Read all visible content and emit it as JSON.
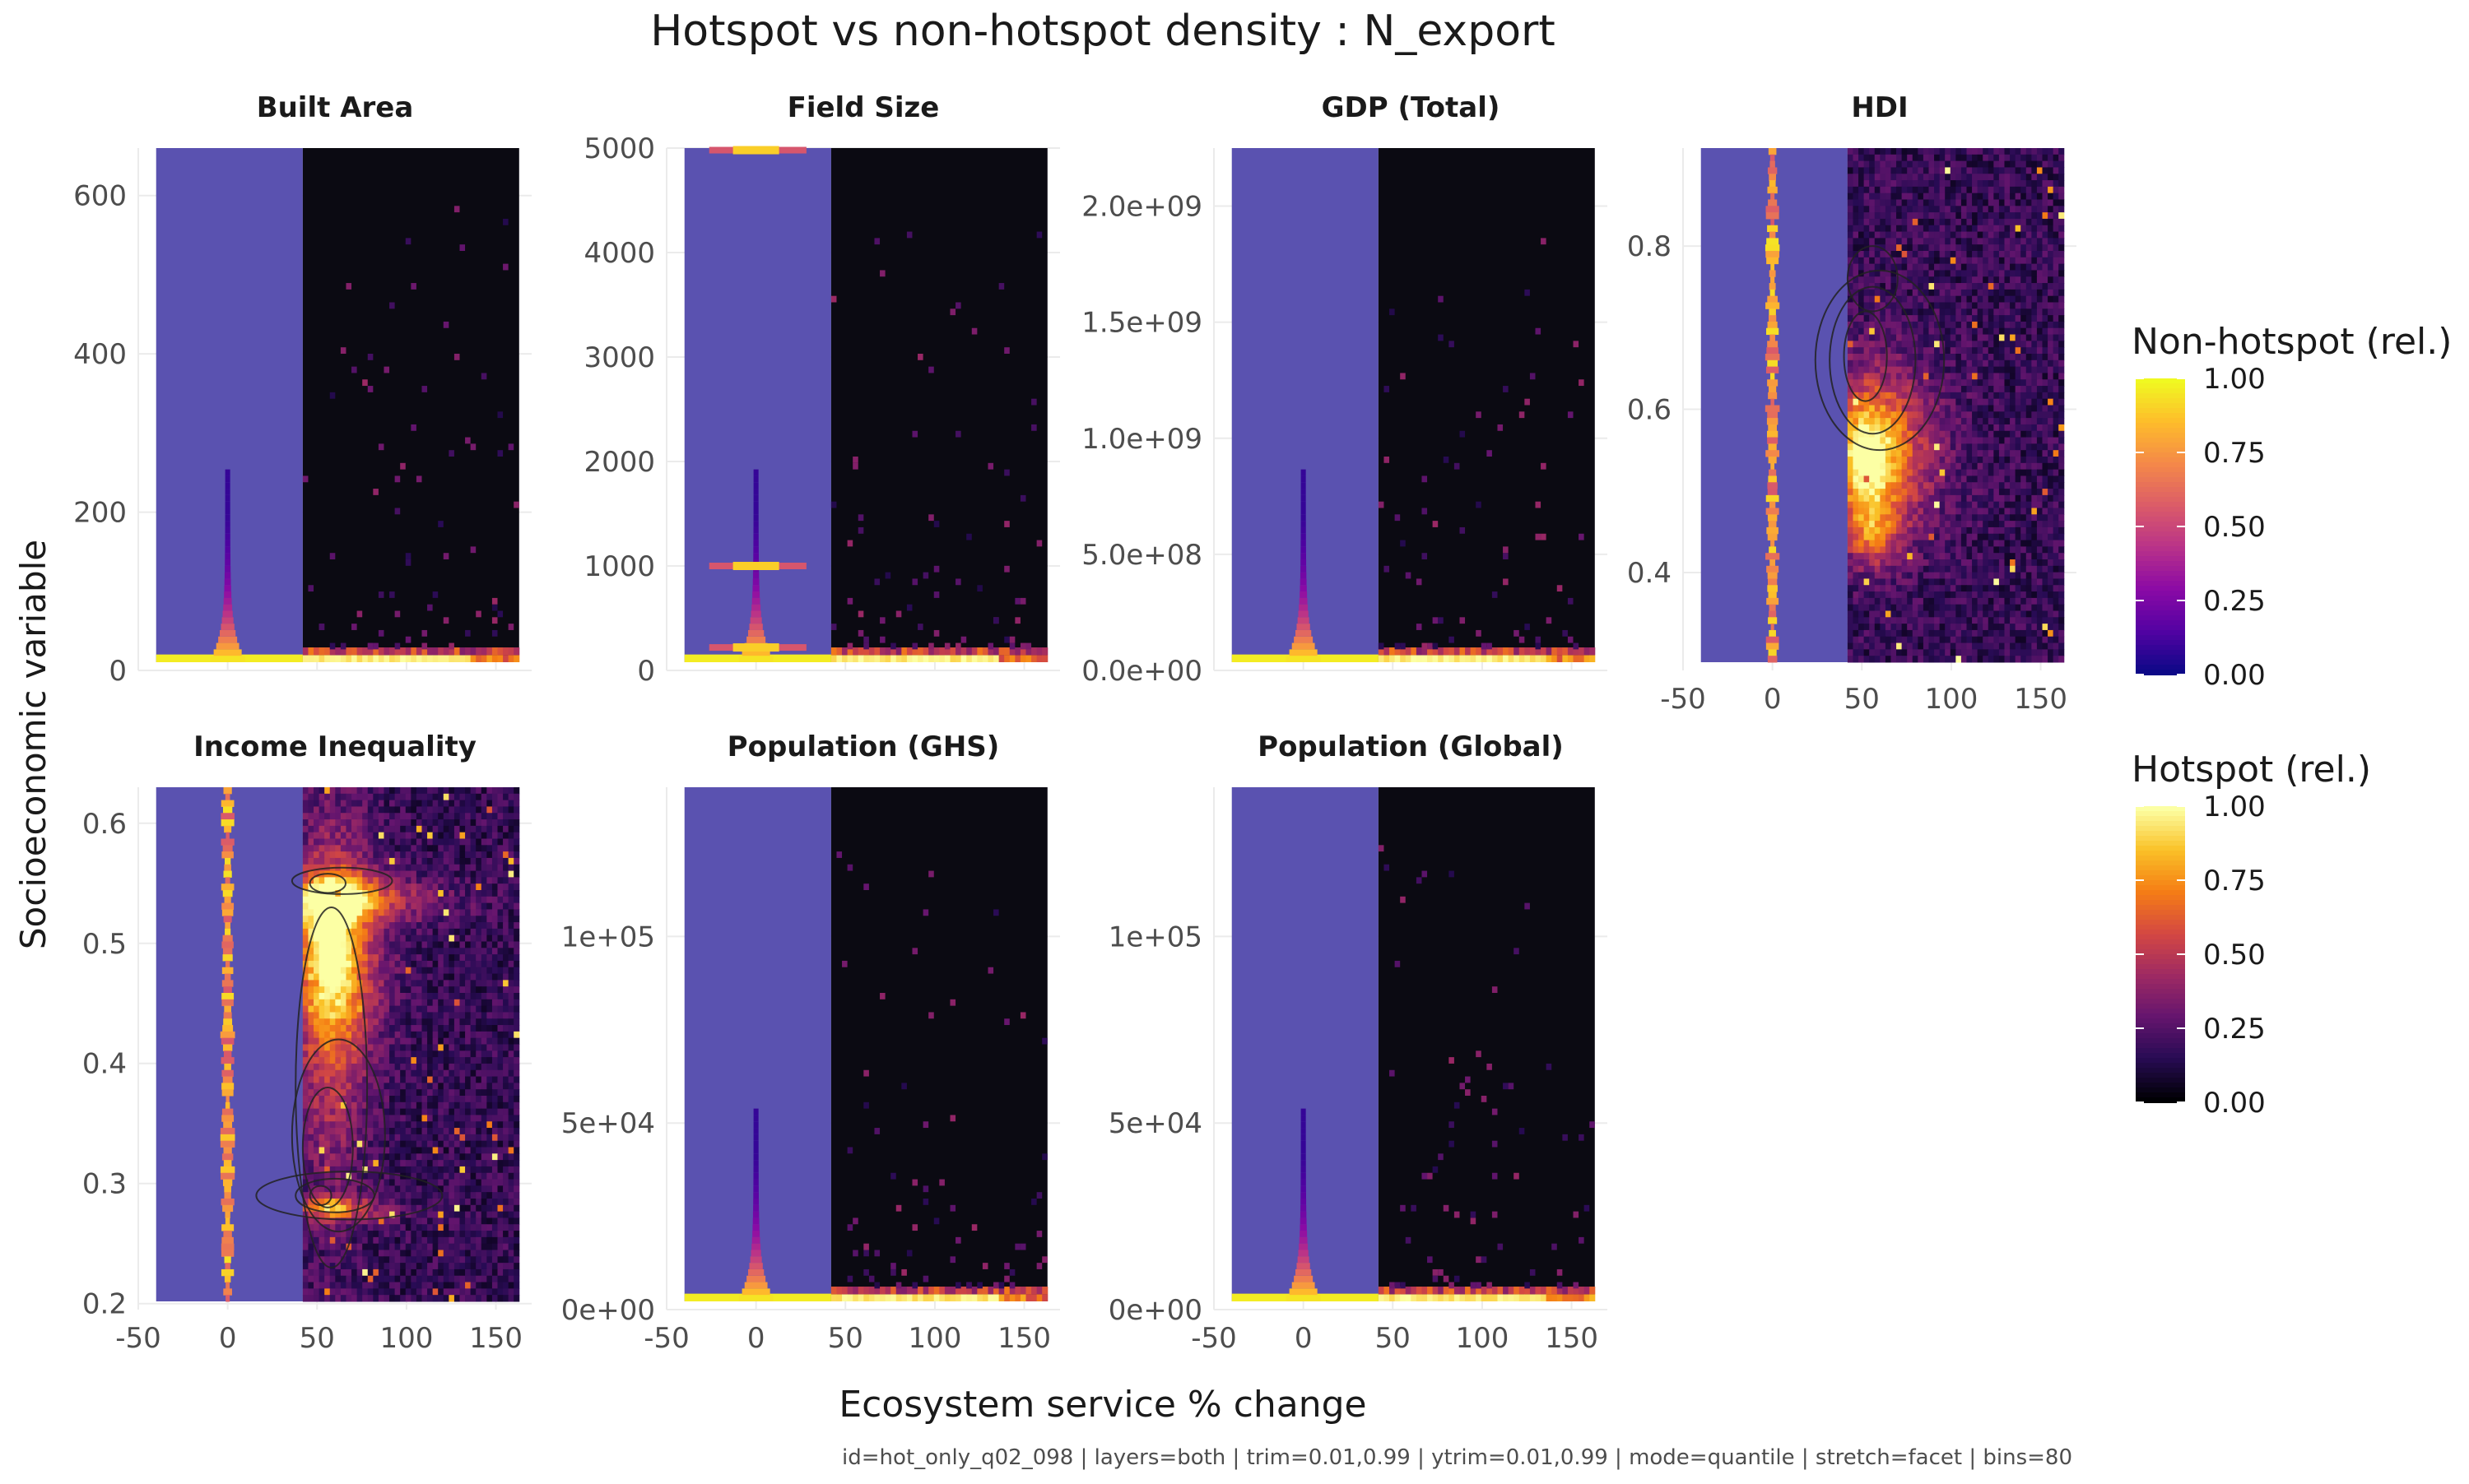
{
  "title": "Hotspot vs non-hotspot density : N_export",
  "xlabel": "Ecosystem service % change",
  "ylabel": "Socioeconomic variable",
  "caption": "id=hot_only_q02_098 | layers=both | trim=0.01,0.99 | ytrim=0.01,0.99 | mode=quantile | stretch=facet | bins=80",
  "colors": {
    "nonhotspot_bg": "#5a52b0",
    "hotspot_bg": "#0b0a12",
    "gridline": "#ebebeb",
    "text": "#1a1a1a",
    "tick_text": "#4d4d4d"
  },
  "chart_data": {
    "type": "heatmap",
    "facet_layout": "4 columns x 2 rows, free y scales",
    "x_axis": {
      "range": [
        -50,
        170
      ],
      "ticks": [
        -50,
        0,
        50,
        100,
        150
      ],
      "tick_labels": [
        "-50",
        "0",
        "50",
        "100",
        "150"
      ]
    },
    "nonhotspot_x_range": [
      -40,
      42
    ],
    "hotspot_x_range": [
      42,
      163
    ],
    "legends": [
      {
        "title": "Non-hotspot (rel.)",
        "palette": "plasma",
        "breaks": [
          1.0,
          0.75,
          0.5,
          0.25,
          0.0
        ],
        "labels": [
          "1.00",
          "0.75",
          "0.50",
          "0.25",
          "0.00"
        ]
      },
      {
        "title": "Hotspot (rel.)",
        "palette": "inferno",
        "breaks": [
          1.0,
          0.75,
          0.5,
          0.25,
          0.0
        ],
        "labels": [
          "1.00",
          "0.75",
          "0.50",
          "0.25",
          "0.00"
        ]
      }
    ],
    "facets": [
      {
        "name": "Built Area",
        "row": 0,
        "col": 0,
        "ylim": [
          0,
          660
        ],
        "data_ymax": 660,
        "yticks": [
          0,
          200,
          400,
          600
        ],
        "ytick_labels": [
          "0",
          "200",
          "400",
          "600"
        ],
        "pattern": "spike",
        "hot_max_x": 163,
        "contours": [],
        "hot_band_y": 5
      },
      {
        "name": "Field Size",
        "row": 0,
        "col": 1,
        "ylim": [
          0,
          5000
        ],
        "data_ymax": 5000,
        "yticks": [
          0,
          1000,
          2000,
          3000,
          4000,
          5000
        ],
        "ytick_labels": [
          "0",
          "1000",
          "2000",
          "3000",
          "4000",
          "5000"
        ],
        "pattern": "spike",
        "hot_max_x": 163,
        "contours": [],
        "hot_band_y": 60,
        "nonhot_bands": [
          1000,
          220,
          4980
        ]
      },
      {
        "name": "GDP (Total)",
        "row": 0,
        "col": 2,
        "ylim": [
          0,
          2250000000
        ],
        "data_ymax": 2250000000,
        "yticks": [
          0,
          500000000,
          1000000000,
          1500000000,
          2000000000
        ],
        "ytick_labels": [
          "0.0e+00",
          "5.0e+08",
          "1.0e+09",
          "1.5e+09",
          "2.0e+09"
        ],
        "pattern": "spike",
        "hot_max_x": 163,
        "contours": [],
        "hot_band_y": 20000000
      },
      {
        "name": "HDI",
        "row": 0,
        "col": 3,
        "ylim": [
          0.28,
          0.92
        ],
        "data_ymax": 0.92,
        "yticks": [
          0.4,
          0.6,
          0.8
        ],
        "ytick_labels": [
          "0.4",
          "0.6",
          "0.8"
        ],
        "pattern": "line",
        "hot_max_x": 163,
        "hot_band_y": null,
        "contours": [
          {
            "cx": 52,
            "cy": 0.665,
            "rx": 12,
            "ry": 0.055
          },
          {
            "cx": 56,
            "cy": 0.66,
            "rx": 24,
            "ry": 0.09
          },
          {
            "cx": 60,
            "cy": 0.66,
            "rx": 36,
            "ry": 0.11
          },
          {
            "cx": 56,
            "cy": 0.76,
            "rx": 14,
            "ry": 0.04
          }
        ]
      },
      {
        "name": "Income Inequality",
        "row": 1,
        "col": 0,
        "ylim": [
          0.195,
          0.63
        ],
        "data_ymax": 0.63,
        "yticks": [
          0.2,
          0.3,
          0.4,
          0.5,
          0.6
        ],
        "ytick_labels": [
          "0.2",
          "0.3",
          "0.4",
          "0.5",
          "0.6"
        ],
        "pattern": "line",
        "hot_max_x": 163,
        "hot_band_y": null,
        "contours": [
          {
            "cx": 56,
            "cy": 0.55,
            "rx": 10,
            "ry": 0.008
          },
          {
            "cx": 64,
            "cy": 0.552,
            "rx": 28,
            "ry": 0.011
          },
          {
            "cx": 52,
            "cy": 0.29,
            "rx": 6,
            "ry": 0.008
          },
          {
            "cx": 60,
            "cy": 0.29,
            "rx": 22,
            "ry": 0.014
          },
          {
            "cx": 68,
            "cy": 0.29,
            "rx": 52,
            "ry": 0.02
          },
          {
            "cx": 56,
            "cy": 0.33,
            "rx": 14,
            "ry": 0.05
          },
          {
            "cx": 62,
            "cy": 0.34,
            "rx": 26,
            "ry": 0.08
          },
          {
            "cx": 58,
            "cy": 0.38,
            "rx": 20,
            "ry": 0.15
          }
        ]
      },
      {
        "name": "Population (GHS)",
        "row": 1,
        "col": 1,
        "ylim": [
          0,
          140000
        ],
        "data_ymax": 140000,
        "yticks": [
          0,
          50000,
          100000
        ],
        "ytick_labels": [
          "0e+00",
          "5e+04",
          "1e+05"
        ],
        "pattern": "spike",
        "hot_max_x": 163,
        "contours": [],
        "hot_band_y": 1500
      },
      {
        "name": "Population (Global)",
        "row": 1,
        "col": 2,
        "ylim": [
          0,
          140000
        ],
        "data_ymax": 140000,
        "yticks": [
          0,
          50000,
          100000
        ],
        "ytick_labels": [
          "0e+00",
          "5e+04",
          "1e+05"
        ],
        "pattern": "spike",
        "hot_max_x": 163,
        "contours": [],
        "hot_band_y": 1500
      }
    ]
  }
}
